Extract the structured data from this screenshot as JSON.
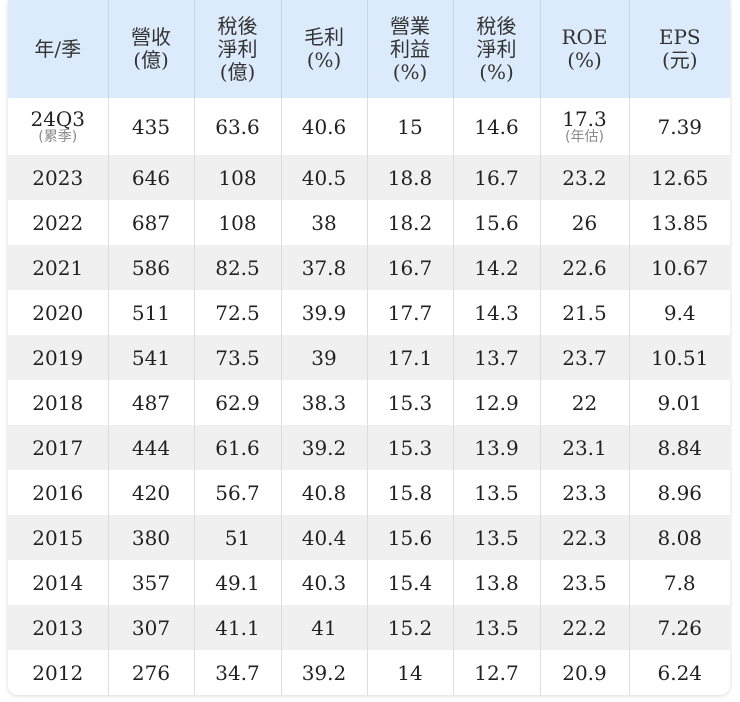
{
  "table": {
    "headers": [
      {
        "lines": [
          "年/季"
        ]
      },
      {
        "lines": [
          "營收",
          "(億)"
        ]
      },
      {
        "lines": [
          "稅後",
          "淨利",
          "(億)"
        ]
      },
      {
        "lines": [
          "毛利",
          "(%)"
        ]
      },
      {
        "lines": [
          "營業",
          "利益",
          "(%)"
        ]
      },
      {
        "lines": [
          "稅後",
          "淨利",
          "(%)"
        ]
      },
      {
        "lines": [
          "ROE",
          "(%)"
        ]
      },
      {
        "lines": [
          "EPS",
          "(元)"
        ]
      }
    ],
    "first_row": {
      "period": "24Q3",
      "period_note": "(累季)",
      "revenue": "435",
      "net_income": "63.6",
      "gross_margin": "40.6",
      "operating_margin": "15",
      "net_margin": "14.6",
      "roe": "17.3",
      "roe_note": "(年估)",
      "eps": "7.39"
    },
    "rows": [
      [
        "2023",
        "646",
        "108",
        "40.5",
        "18.8",
        "16.7",
        "23.2",
        "12.65"
      ],
      [
        "2022",
        "687",
        "108",
        "38",
        "18.2",
        "15.6",
        "26",
        "13.85"
      ],
      [
        "2021",
        "586",
        "82.5",
        "37.8",
        "16.7",
        "14.2",
        "22.6",
        "10.67"
      ],
      [
        "2020",
        "511",
        "72.5",
        "39.9",
        "17.7",
        "14.3",
        "21.5",
        "9.4"
      ],
      [
        "2019",
        "541",
        "73.5",
        "39",
        "17.1",
        "13.7",
        "23.7",
        "10.51"
      ],
      [
        "2018",
        "487",
        "62.9",
        "38.3",
        "15.3",
        "12.9",
        "22",
        "9.01"
      ],
      [
        "2017",
        "444",
        "61.6",
        "39.2",
        "15.3",
        "13.9",
        "23.1",
        "8.84"
      ],
      [
        "2016",
        "420",
        "56.7",
        "40.8",
        "15.8",
        "13.5",
        "23.3",
        "8.96"
      ],
      [
        "2015",
        "380",
        "51",
        "40.4",
        "15.6",
        "13.5",
        "22.3",
        "8.08"
      ],
      [
        "2014",
        "357",
        "49.1",
        "40.3",
        "15.4",
        "13.8",
        "23.5",
        "7.8"
      ],
      [
        "2013",
        "307",
        "41.1",
        "41",
        "15.2",
        "13.5",
        "22.2",
        "7.26"
      ],
      [
        "2012",
        "276",
        "34.7",
        "39.2",
        "14",
        "12.7",
        "20.9",
        "6.24"
      ]
    ]
  }
}
